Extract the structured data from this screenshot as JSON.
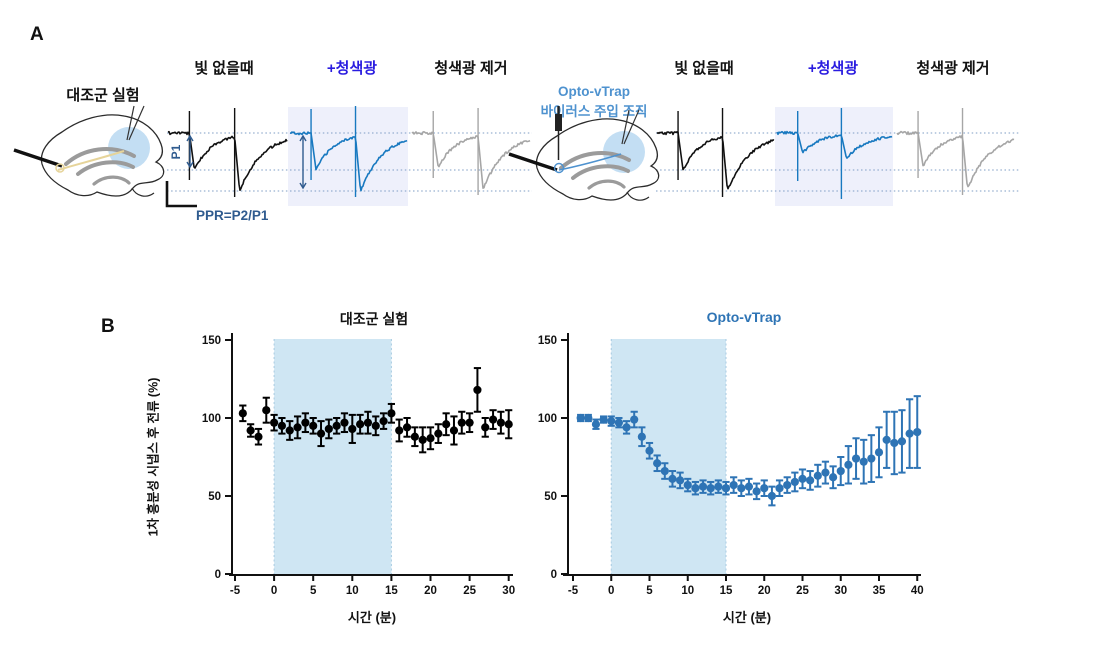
{
  "figure": {
    "panel_a_label": "A",
    "panel_b_label": "B"
  },
  "panel_a": {
    "control_title": "대조군 실험",
    "opto_title_line1": "Opto-vTrap",
    "opto_title_line2": "바이러스 주입 조직",
    "conditions": [
      "빛 없을때",
      "+청색광",
      "청색광 제거"
    ],
    "p1_label": "P1",
    "p2_label": "P2",
    "ppr_label": "PPR=P2/P1",
    "trace_groups": [
      {
        "name": "control",
        "traces": [
          {
            "condition": "no-light",
            "color_key": "trace_black",
            "p1": 37,
            "p2": 58,
            "art_up": 22,
            "art_dn1": 47,
            "art_dn2": 64
          },
          {
            "condition": "blue-light",
            "color_key": "trace_blue",
            "p1": 37,
            "p2": 58,
            "art_up": 24,
            "art_dn1": 47,
            "art_dn2": 64
          },
          {
            "condition": "light-removed",
            "color_key": "trace_gray",
            "p1": 34,
            "p2": 56,
            "art_up": 22,
            "art_dn1": 45,
            "art_dn2": 62
          }
        ]
      },
      {
        "name": "opto-vtrap",
        "traces": [
          {
            "condition": "no-light",
            "color_key": "trace_black",
            "p1": 37,
            "p2": 58,
            "art_up": 22,
            "art_dn1": 47,
            "art_dn2": 64
          },
          {
            "condition": "blue-light",
            "color_key": "trace_blue",
            "p1": 20,
            "p2": 25,
            "art_up": 22,
            "art_dn1": 48,
            "art_dn2": 66
          },
          {
            "condition": "light-removed",
            "color_key": "trace_gray",
            "p1": 33,
            "p2": 56,
            "art_up": 22,
            "art_dn1": 45,
            "art_dn2": 62
          }
        ]
      }
    ]
  },
  "panel_b": {
    "ylabel": "1차 흥분성 시냅스 후 전류 (%)"
  },
  "chart_data": [
    {
      "type": "scatter",
      "title": "대조군 실험",
      "xlabel": "시간 (분)",
      "ylabel": "1차 흥분성 시냅스 후 전류 (%)",
      "xlim": [
        -5,
        30
      ],
      "ylim": [
        0,
        150
      ],
      "xticks": [
        -5,
        0,
        5,
        10,
        15,
        20,
        25,
        30
      ],
      "yticks": [
        0,
        50,
        100,
        150
      ],
      "shaded_region": {
        "x0": 0,
        "x1": 15,
        "label": "+청색광"
      },
      "point_color_key": "point_black",
      "x": [
        -4,
        -3,
        -2,
        -1,
        0,
        1,
        2,
        3,
        4,
        5,
        6,
        7,
        8,
        9,
        10,
        11,
        12,
        13,
        14,
        15,
        16,
        17,
        18,
        19,
        20,
        21,
        22,
        23,
        24,
        25,
        26,
        27,
        28,
        29,
        30
      ],
      "y": [
        103,
        92,
        88,
        105,
        97,
        95,
        92,
        94,
        97,
        95,
        90,
        93,
        95,
        97,
        93,
        96,
        97,
        95,
        98,
        103,
        92,
        94,
        88,
        86,
        87,
        90,
        96,
        92,
        97,
        97,
        118,
        94,
        99,
        97,
        96
      ],
      "err": [
        5,
        4,
        5,
        8,
        5,
        5,
        6,
        7,
        6,
        5,
        8,
        6,
        5,
        6,
        9,
        6,
        7,
        6,
        5,
        6,
        7,
        6,
        6,
        8,
        7,
        6,
        7,
        9,
        7,
        6,
        14,
        6,
        6,
        7,
        9
      ]
    },
    {
      "type": "scatter",
      "title": "Opto-vTrap",
      "xlabel": "시간 (분)",
      "ylabel": "1차 흥분성 시냅스 후 전류 (%)",
      "xlim": [
        -5,
        40
      ],
      "ylim": [
        0,
        150
      ],
      "xticks": [
        -5,
        0,
        5,
        10,
        15,
        20,
        25,
        30,
        35,
        40
      ],
      "yticks": [
        0,
        50,
        100,
        150
      ],
      "shaded_region": {
        "x0": 0,
        "x1": 15,
        "label": "+청색광"
      },
      "point_color_key": "point_blue",
      "x": [
        -4,
        -3,
        -2,
        -1,
        0,
        1,
        2,
        3,
        4,
        5,
        6,
        7,
        8,
        9,
        10,
        11,
        12,
        13,
        14,
        15,
        16,
        17,
        18,
        19,
        20,
        21,
        22,
        23,
        24,
        25,
        26,
        27,
        28,
        29,
        30,
        31,
        32,
        33,
        34,
        35,
        36,
        37,
        38,
        39,
        40
      ],
      "y": [
        100,
        100,
        96,
        99,
        98,
        97,
        94,
        99,
        88,
        79,
        71,
        66,
        61,
        60,
        57,
        55,
        56,
        55,
        56,
        55,
        57,
        55,
        56,
        53,
        55,
        50,
        55,
        57,
        59,
        61,
        60,
        63,
        65,
        62,
        66,
        70,
        74,
        72,
        74,
        78,
        86,
        84,
        85,
        90,
        91
      ],
      "err": [
        2,
        2,
        3,
        2,
        3,
        3,
        4,
        5,
        6,
        5,
        5,
        5,
        5,
        5,
        4,
        4,
        4,
        4,
        4,
        4,
        5,
        5,
        5,
        5,
        5,
        6,
        5,
        5,
        6,
        6,
        6,
        7,
        7,
        7,
        9,
        12,
        13,
        14,
        15,
        16,
        18,
        20,
        20,
        22,
        23
      ]
    }
  ],
  "colors": {
    "point_black": "#000000",
    "point_blue": "#2E74B5",
    "trace_black": "#111111",
    "trace_blue": "#1879C0",
    "trace_gray": "#A6A6A6",
    "bluelight_text": "#2A1CE0",
    "opto_label_blue": "#4E92CF",
    "opto_title_blue": "#2E74B5",
    "chart_shade": "#CFE6F3",
    "trace_shade": "#EEF0FB",
    "dotted_line": "#7D9CC4",
    "annotation_navy": "#2F5B8F",
    "highlight_circle": "#AFD3EF"
  }
}
